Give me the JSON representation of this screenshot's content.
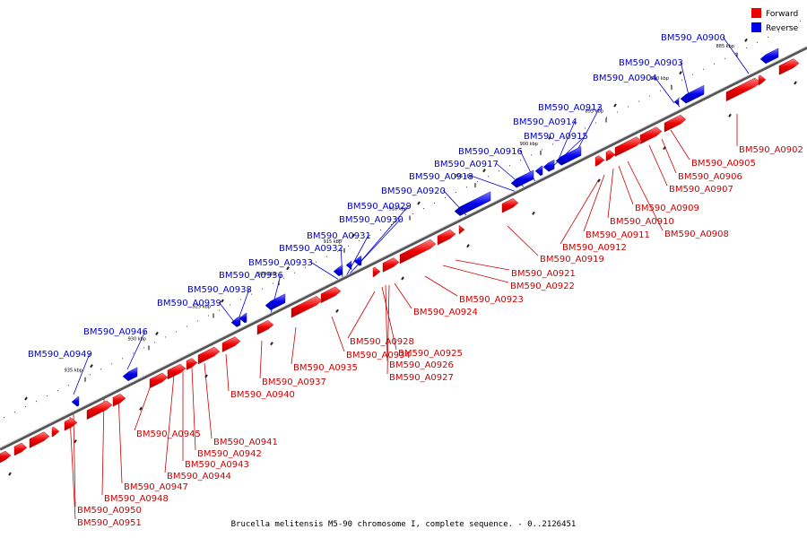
{
  "title": "Brucella melitensis M5-90 chromosome I, complete sequence. - 0..2126451",
  "legend": {
    "forward_label": "Forward",
    "reverse_label": "Reverse",
    "forward_color": "#ee0000",
    "reverse_color": "#0000ee"
  },
  "ticks": [
    "885 kbp",
    "890 kbp",
    "895 kbp",
    "900 kbp",
    "905 kbp",
    "910 kbp",
    "915 kbp",
    "920 kbp",
    "925 kbp",
    "930 kbp",
    "935 kbp"
  ],
  "reverse_labels": [
    "BM590_A0900",
    "BM590_A0903",
    "BM590_A0904",
    "BM590_A0913",
    "BM590_A0914",
    "BM590_A0915",
    "BM590_A0916",
    "BM590_A0917",
    "BM590_A0918",
    "BM590_A0920",
    "BM590_A0929",
    "BM590_A0930",
    "BM590_A0931",
    "BM590_A0932",
    "BM590_A0933",
    "BM590_A0936",
    "BM590_A0938",
    "BM590_A0939",
    "BM590_A0946",
    "BM590_A0949"
  ],
  "forward_labels": [
    "BM590_A0902",
    "BM590_A0905",
    "BM590_A0906",
    "BM590_A0907",
    "BM590_A0909",
    "BM590_A0910",
    "BM590_A0908",
    "BM590_A0911",
    "BM590_A0912",
    "BM590_A0919",
    "BM590_A0921",
    "BM590_A0922",
    "BM590_A0923",
    "BM590_A0924",
    "BM590_A0928",
    "BM590_A0934",
    "BM590_A0935",
    "BM590_A0925",
    "BM590_A0926",
    "BM590_A0927",
    "BM590_A0937",
    "BM590_A0940",
    "BM590_A0941",
    "BM590_A0942",
    "BM590_A0943",
    "BM590_A0944",
    "BM590_A0945",
    "BM590_A0947",
    "BM590_A0948",
    "BM590_A0950",
    "BM590_A0951"
  ]
}
